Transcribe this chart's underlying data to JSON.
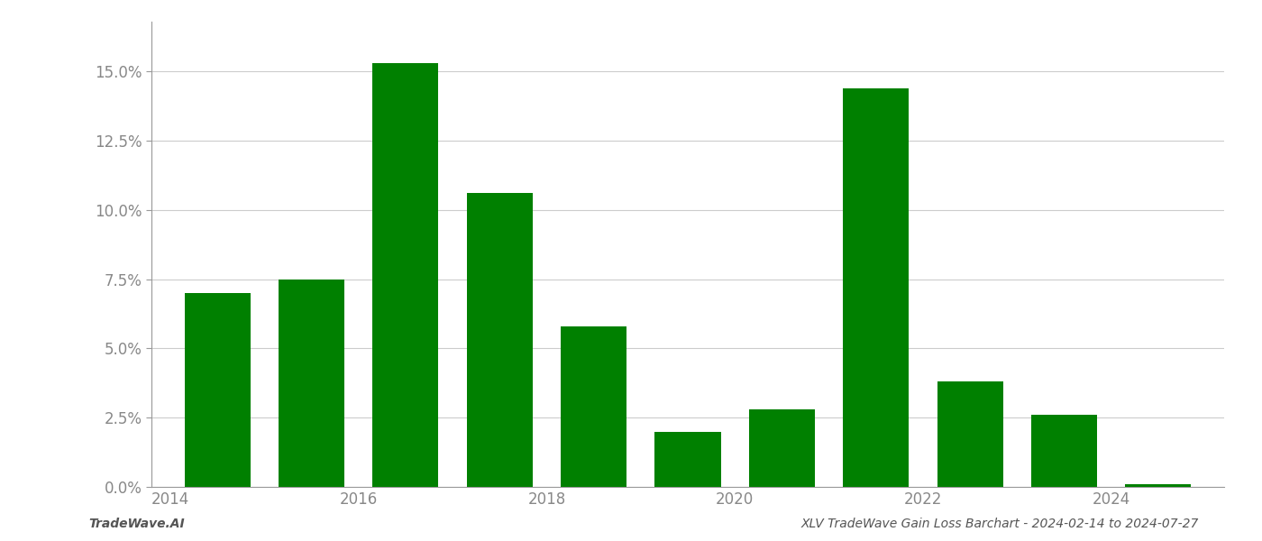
{
  "years": [
    2014,
    2015,
    2016,
    2017,
    2018,
    2019,
    2020,
    2021,
    2022,
    2023,
    2024
  ],
  "values": [
    0.07,
    0.075,
    0.153,
    0.106,
    0.058,
    0.02,
    0.028,
    0.144,
    0.038,
    0.026,
    0.001
  ],
  "bar_color": "#008000",
  "background_color": "#ffffff",
  "title": "XLV TradeWave Gain Loss Barchart - 2024-02-14 to 2024-07-27",
  "footer_left": "TradeWave.AI",
  "xlim": [
    2013.3,
    2024.7
  ],
  "ylim": [
    0,
    0.168
  ],
  "ytick_values": [
    0.0,
    0.025,
    0.05,
    0.075,
    0.1,
    0.125,
    0.15
  ],
  "xtick_positions": [
    2013.5,
    2015.5,
    2017.5,
    2019.5,
    2021.5,
    2023.5
  ],
  "xtick_labels": [
    "2014",
    "2016",
    "2018",
    "2020",
    "2022",
    "2024"
  ],
  "grid_color": "#cccccc",
  "spine_color": "#999999",
  "axis_label_color": "#888888",
  "footer_color": "#555555",
  "footer_fontsize": 10,
  "tick_fontsize": 12,
  "bar_width": 0.7
}
